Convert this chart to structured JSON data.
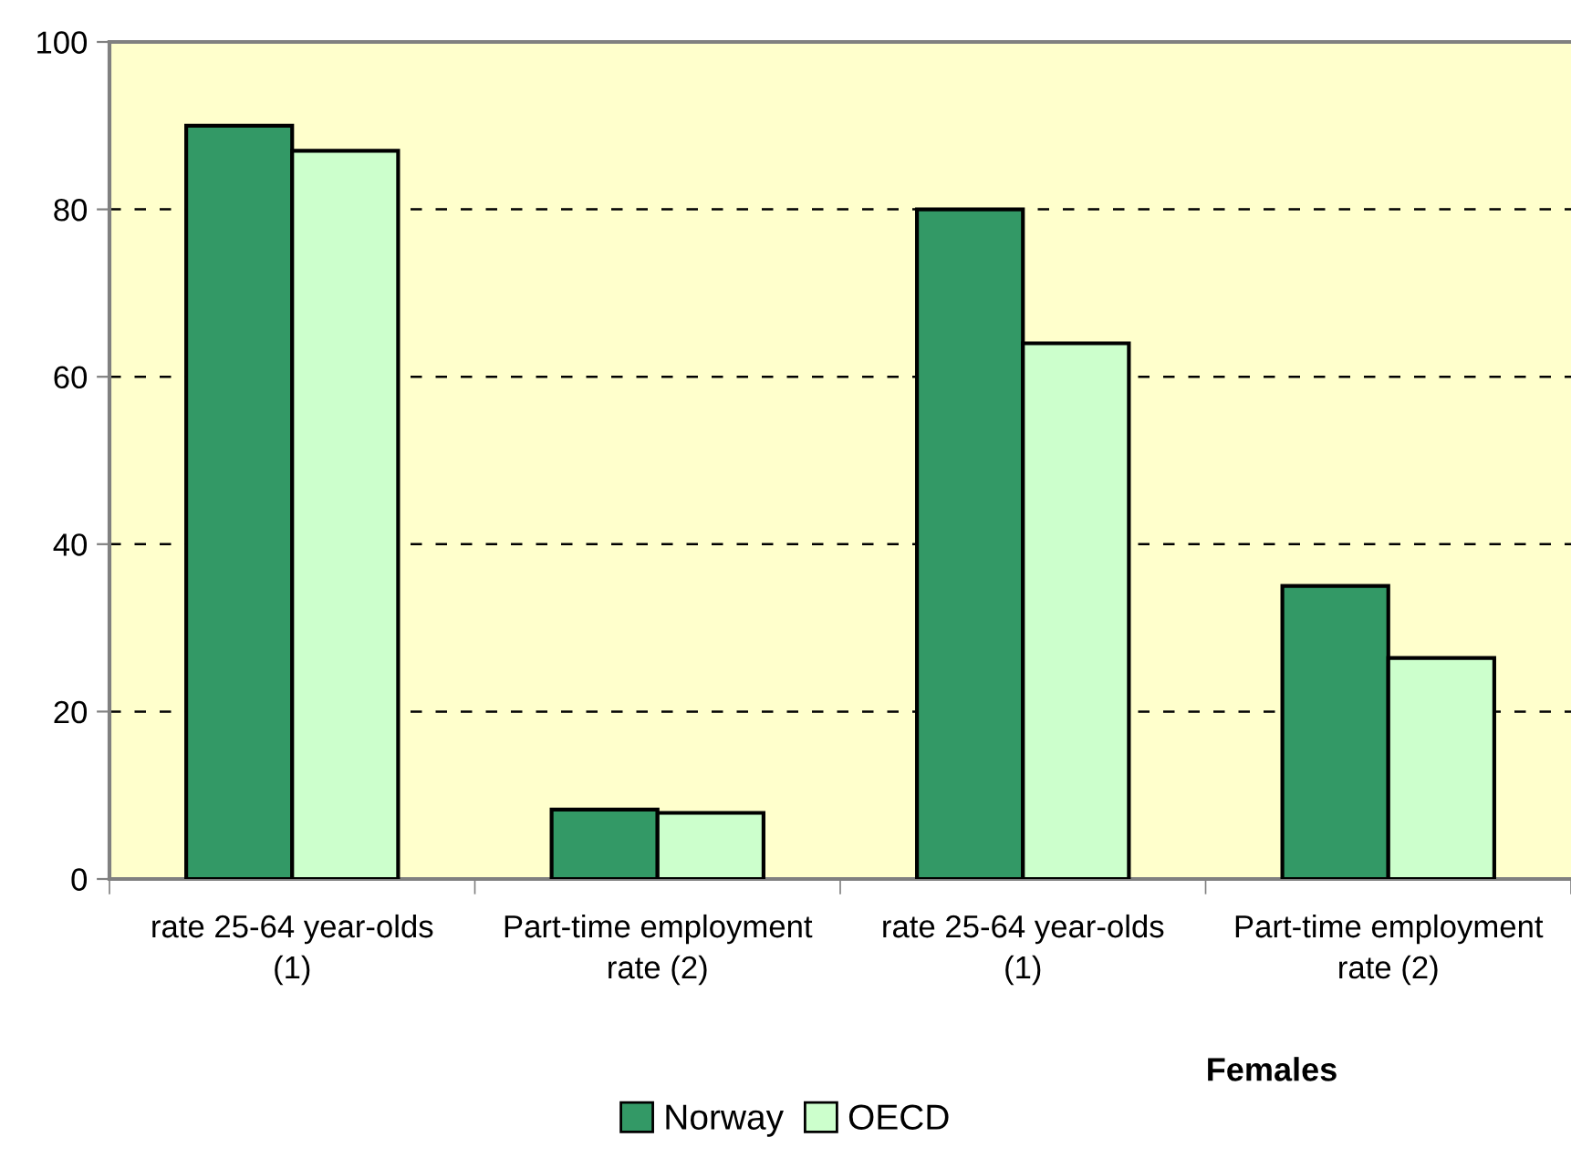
{
  "chart_data": {
    "type": "bar",
    "xlabel": "Females",
    "categories": [
      "rate 25-64 year-olds (1)",
      "Part-time employment rate (2)",
      "rate 25-64 year-olds (1)",
      "Part-time employment rate (2)"
    ],
    "series": [
      {
        "name": "Norway",
        "color": "#339966",
        "values": [
          90,
          8.3,
          80,
          35
        ]
      },
      {
        "name": "OECD",
        "color": "#ccffcc",
        "values": [
          87,
          7.9,
          64,
          26.4
        ]
      }
    ],
    "ylim": [
      0,
      100
    ],
    "yticks": [
      0,
      20,
      40,
      60,
      80,
      100
    ],
    "grid": "y",
    "legend": "bottom"
  }
}
